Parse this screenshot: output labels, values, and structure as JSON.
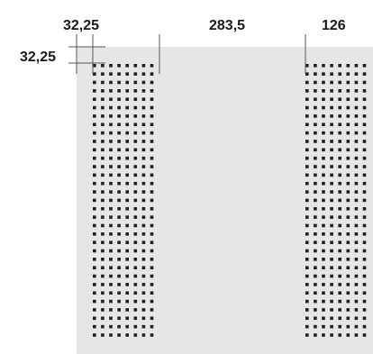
{
  "dimensions": {
    "perforation_offset": "32,25",
    "left_perforated_band": "",
    "blank_gap": "283,5",
    "right_perforated_band": "126",
    "vertical_offset": "32,25"
  },
  "colors": {
    "panel": "#e6e6e6",
    "hole": "#1f1f1f",
    "dimension_line": "#555555",
    "text": "#1a1a1a"
  }
}
